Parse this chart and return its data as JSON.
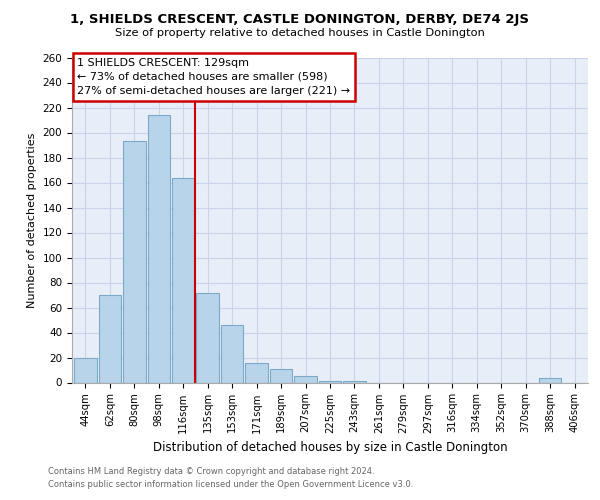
{
  "title": "1, SHIELDS CRESCENT, CASTLE DONINGTON, DERBY, DE74 2JS",
  "subtitle": "Size of property relative to detached houses in Castle Donington",
  "xlabel": "Distribution of detached houses by size in Castle Donington",
  "ylabel": "Number of detached properties",
  "bar_color": "#b8d4ea",
  "bar_edge_color": "#7aaac8",
  "categories": [
    "44sqm",
    "62sqm",
    "80sqm",
    "98sqm",
    "116sqm",
    "135sqm",
    "153sqm",
    "171sqm",
    "189sqm",
    "207sqm",
    "225sqm",
    "243sqm",
    "261sqm",
    "279sqm",
    "297sqm",
    "316sqm",
    "334sqm",
    "352sqm",
    "370sqm",
    "388sqm",
    "406sqm"
  ],
  "values": [
    20,
    70,
    193,
    214,
    164,
    72,
    46,
    16,
    11,
    5,
    1,
    1,
    0,
    0,
    0,
    0,
    0,
    0,
    0,
    4,
    0
  ],
  "vline_color": "#cc0000",
  "annotation_title": "1 SHIELDS CRESCENT: 129sqm",
  "annotation_line1": "← 73% of detached houses are smaller (598)",
  "annotation_line2": "27% of semi-detached houses are larger (221) →",
  "ylim": [
    0,
    260
  ],
  "yticks": [
    0,
    20,
    40,
    60,
    80,
    100,
    120,
    140,
    160,
    180,
    200,
    220,
    240,
    260
  ],
  "footer1": "Contains HM Land Registry data © Crown copyright and database right 2024.",
  "footer2": "Contains public sector information licensed under the Open Government Licence v3.0.",
  "bg_color": "#ffffff",
  "plot_bg_color": "#e8eef8",
  "grid_color": "#c8d4e8"
}
